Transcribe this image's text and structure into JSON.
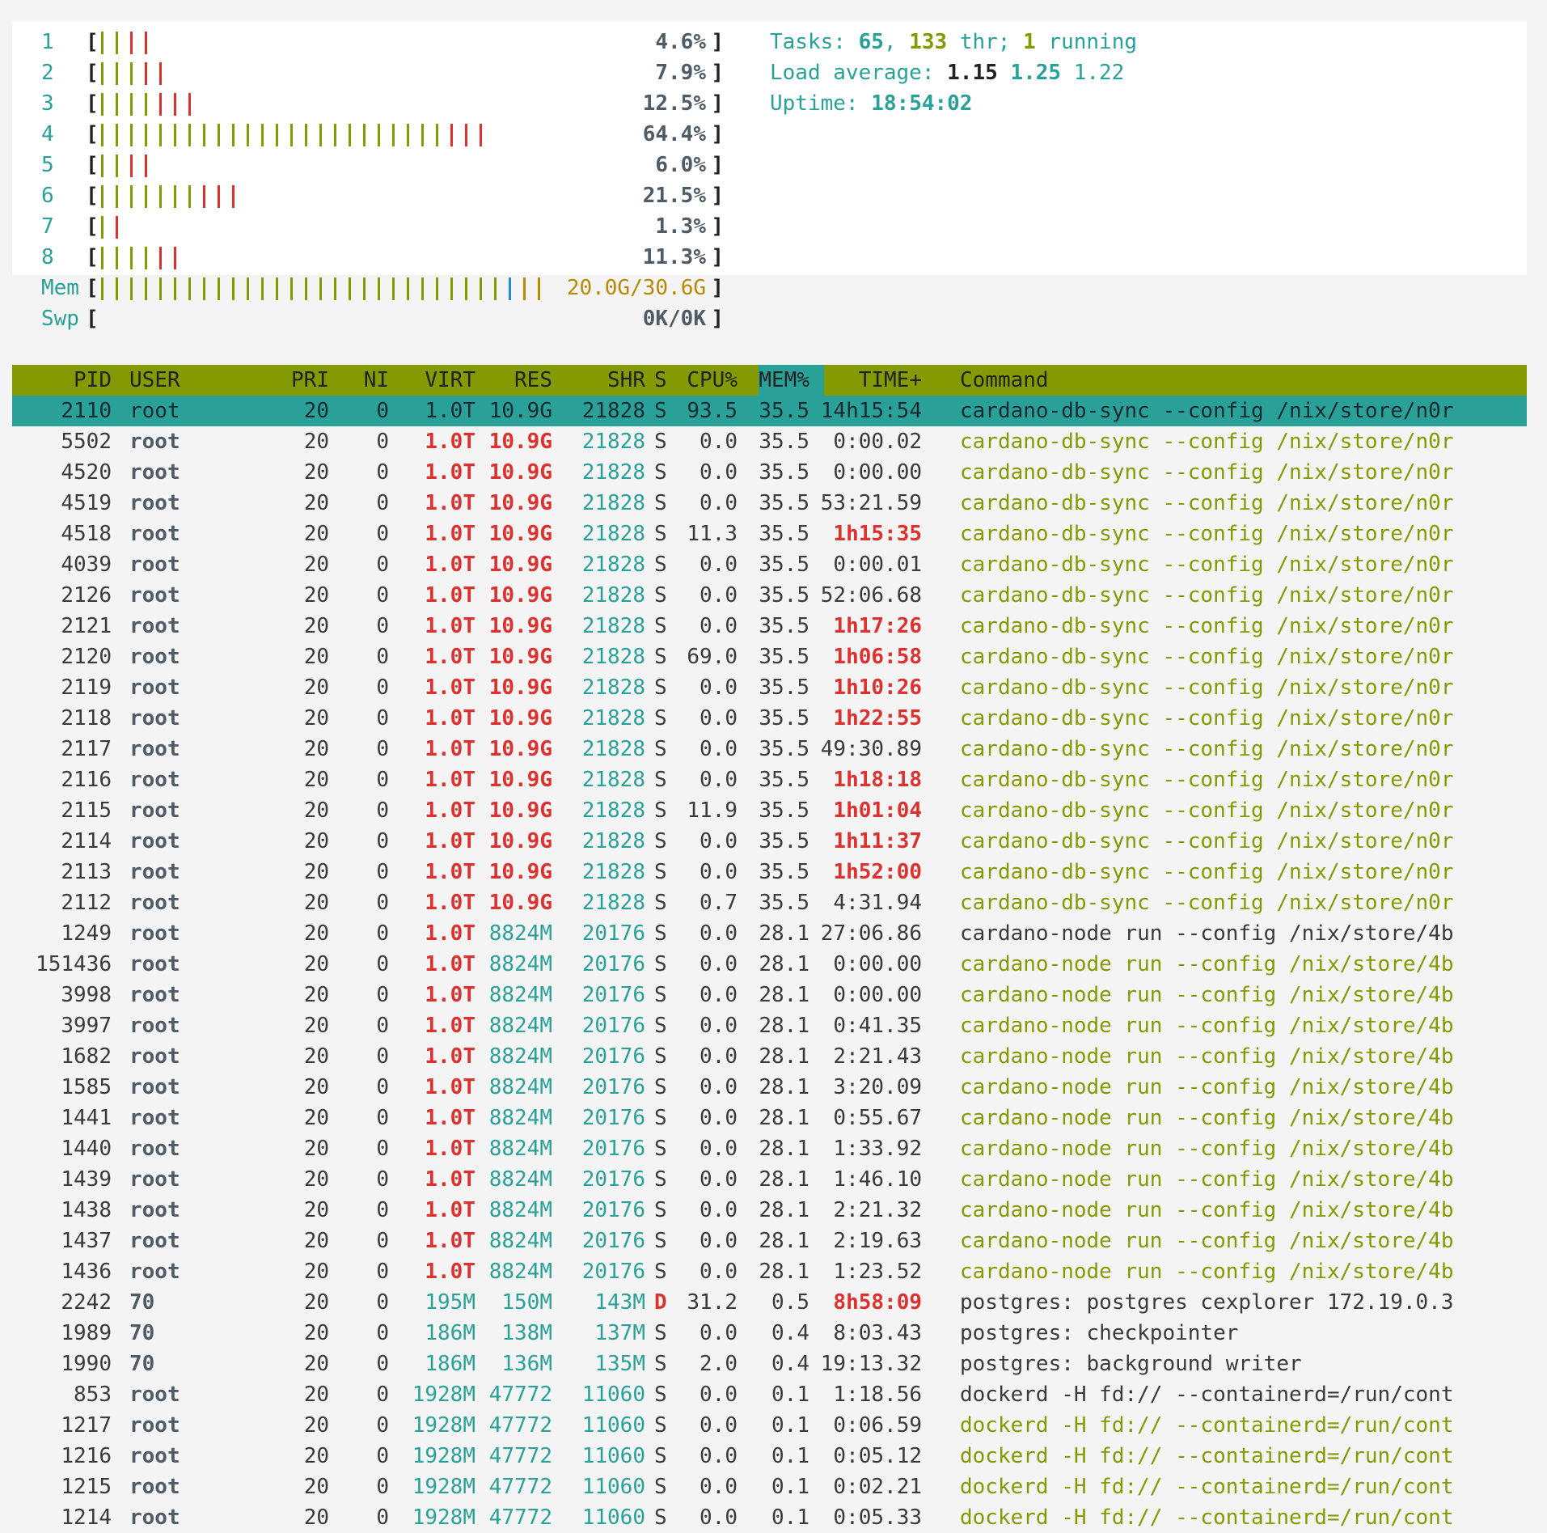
{
  "cpus": [
    {
      "num": "1",
      "percent": "4.6%",
      "green_bars": 2,
      "red_bars": 2
    },
    {
      "num": "2",
      "percent": "7.9%",
      "green_bars": 3,
      "red_bars": 2
    },
    {
      "num": "3",
      "percent": "12.5%",
      "green_bars": 4,
      "red_bars": 3
    },
    {
      "num": "4",
      "percent": "64.4%",
      "green_bars": 24,
      "red_bars": 3
    },
    {
      "num": "5",
      "percent": "6.0%",
      "green_bars": 2,
      "red_bars": 2
    },
    {
      "num": "6",
      "percent": "21.5%",
      "green_bars": 7,
      "red_bars": 3
    },
    {
      "num": "7",
      "percent": "1.3%",
      "green_bars": 1,
      "red_bars": 1
    },
    {
      "num": "8",
      "percent": "11.3%",
      "green_bars": 4,
      "red_bars": 2
    }
  ],
  "mem": {
    "label": "Mem",
    "value": "20.0G/30.6G",
    "green_bars": 28,
    "blue_bars": 1,
    "yellow_bars": 2
  },
  "swp": {
    "label": "Swp",
    "value": "0K/0K"
  },
  "summary": {
    "tasks_label": "Tasks:",
    "tasks": "65",
    "thr": "133",
    "thr_label": "thr;",
    "running": "1",
    "running_label": "running",
    "load_label": "Load average:",
    "load1": "1.15",
    "load5": "1.25",
    "load15": "1.22",
    "uptime_label": "Uptime:",
    "uptime": "18:54:02"
  },
  "header": {
    "pid": "PID",
    "user": "USER",
    "pri": "PRI",
    "ni": "NI",
    "virt": "VIRT",
    "res": "RES",
    "shr": "SHR",
    "s": "S",
    "cpu": "CPU%",
    "mem": "MEM%",
    "time": "TIME+",
    "command": "Command"
  },
  "processes": [
    {
      "pid": "2110",
      "user": "root",
      "pri": "20",
      "ni": "0",
      "virt": "1.0T",
      "res": "10.9G",
      "shr": "21828",
      "s": "S",
      "cpu": "93.5",
      "mem": "35.5",
      "time": "14h15:54",
      "cmd": "cardano-db-sync --config /nix/store/n0r",
      "selected": true
    },
    {
      "pid": "5502",
      "user": "root",
      "pri": "20",
      "ni": "0",
      "virt": "1.0T",
      "res": "10.9G",
      "shr": "21828",
      "s": "S",
      "cpu": "0.0",
      "mem": "35.5",
      "time": "0:00.02",
      "cmd": "cardano-db-sync --config /nix/store/n0r",
      "thread": true
    },
    {
      "pid": "4520",
      "user": "root",
      "pri": "20",
      "ni": "0",
      "virt": "1.0T",
      "res": "10.9G",
      "shr": "21828",
      "s": "S",
      "cpu": "0.0",
      "mem": "35.5",
      "time": "0:00.00",
      "cmd": "cardano-db-sync --config /nix/store/n0r",
      "thread": true
    },
    {
      "pid": "4519",
      "user": "root",
      "pri": "20",
      "ni": "0",
      "virt": "1.0T",
      "res": "10.9G",
      "shr": "21828",
      "s": "S",
      "cpu": "0.0",
      "mem": "35.5",
      "time": "53:21.59",
      "cmd": "cardano-db-sync --config /nix/store/n0r",
      "thread": true
    },
    {
      "pid": "4518",
      "user": "root",
      "pri": "20",
      "ni": "0",
      "virt": "1.0T",
      "res": "10.9G",
      "shr": "21828",
      "s": "S",
      "cpu": "11.3",
      "mem": "35.5",
      "time": "1h15:35",
      "cmd": "cardano-db-sync --config /nix/store/n0r",
      "thread": true
    },
    {
      "pid": "4039",
      "user": "root",
      "pri": "20",
      "ni": "0",
      "virt": "1.0T",
      "res": "10.9G",
      "shr": "21828",
      "s": "S",
      "cpu": "0.0",
      "mem": "35.5",
      "time": "0:00.01",
      "cmd": "cardano-db-sync --config /nix/store/n0r",
      "thread": true
    },
    {
      "pid": "2126",
      "user": "root",
      "pri": "20",
      "ni": "0",
      "virt": "1.0T",
      "res": "10.9G",
      "shr": "21828",
      "s": "S",
      "cpu": "0.0",
      "mem": "35.5",
      "time": "52:06.68",
      "cmd": "cardano-db-sync --config /nix/store/n0r",
      "thread": true
    },
    {
      "pid": "2121",
      "user": "root",
      "pri": "20",
      "ni": "0",
      "virt": "1.0T",
      "res": "10.9G",
      "shr": "21828",
      "s": "S",
      "cpu": "0.0",
      "mem": "35.5",
      "time": "1h17:26",
      "cmd": "cardano-db-sync --config /nix/store/n0r",
      "thread": true
    },
    {
      "pid": "2120",
      "user": "root",
      "pri": "20",
      "ni": "0",
      "virt": "1.0T",
      "res": "10.9G",
      "shr": "21828",
      "s": "S",
      "cpu": "69.0",
      "mem": "35.5",
      "time": "1h06:58",
      "cmd": "cardano-db-sync --config /nix/store/n0r",
      "thread": true
    },
    {
      "pid": "2119",
      "user": "root",
      "pri": "20",
      "ni": "0",
      "virt": "1.0T",
      "res": "10.9G",
      "shr": "21828",
      "s": "S",
      "cpu": "0.0",
      "mem": "35.5",
      "time": "1h10:26",
      "cmd": "cardano-db-sync --config /nix/store/n0r",
      "thread": true
    },
    {
      "pid": "2118",
      "user": "root",
      "pri": "20",
      "ni": "0",
      "virt": "1.0T",
      "res": "10.9G",
      "shr": "21828",
      "s": "S",
      "cpu": "0.0",
      "mem": "35.5",
      "time": "1h22:55",
      "cmd": "cardano-db-sync --config /nix/store/n0r",
      "thread": true
    },
    {
      "pid": "2117",
      "user": "root",
      "pri": "20",
      "ni": "0",
      "virt": "1.0T",
      "res": "10.9G",
      "shr": "21828",
      "s": "S",
      "cpu": "0.0",
      "mem": "35.5",
      "time": "49:30.89",
      "cmd": "cardano-db-sync --config /nix/store/n0r",
      "thread": true
    },
    {
      "pid": "2116",
      "user": "root",
      "pri": "20",
      "ni": "0",
      "virt": "1.0T",
      "res": "10.9G",
      "shr": "21828",
      "s": "S",
      "cpu": "0.0",
      "mem": "35.5",
      "time": "1h18:18",
      "cmd": "cardano-db-sync --config /nix/store/n0r",
      "thread": true
    },
    {
      "pid": "2115",
      "user": "root",
      "pri": "20",
      "ni": "0",
      "virt": "1.0T",
      "res": "10.9G",
      "shr": "21828",
      "s": "S",
      "cpu": "11.9",
      "mem": "35.5",
      "time": "1h01:04",
      "cmd": "cardano-db-sync --config /nix/store/n0r",
      "thread": true
    },
    {
      "pid": "2114",
      "user": "root",
      "pri": "20",
      "ni": "0",
      "virt": "1.0T",
      "res": "10.9G",
      "shr": "21828",
      "s": "S",
      "cpu": "0.0",
      "mem": "35.5",
      "time": "1h11:37",
      "cmd": "cardano-db-sync --config /nix/store/n0r",
      "thread": true
    },
    {
      "pid": "2113",
      "user": "root",
      "pri": "20",
      "ni": "0",
      "virt": "1.0T",
      "res": "10.9G",
      "shr": "21828",
      "s": "S",
      "cpu": "0.0",
      "mem": "35.5",
      "time": "1h52:00",
      "cmd": "cardano-db-sync --config /nix/store/n0r",
      "thread": true
    },
    {
      "pid": "2112",
      "user": "root",
      "pri": "20",
      "ni": "0",
      "virt": "1.0T",
      "res": "10.9G",
      "shr": "21828",
      "s": "S",
      "cpu": "0.7",
      "mem": "35.5",
      "time": "4:31.94",
      "cmd": "cardano-db-sync --config /nix/store/n0r",
      "thread": true
    },
    {
      "pid": "1249",
      "user": "root",
      "pri": "20",
      "ni": "0",
      "virt": "1.0T",
      "res": "8824M",
      "shr": "20176",
      "s": "S",
      "cpu": "0.0",
      "mem": "28.1",
      "time": "27:06.86",
      "cmd": "cardano-node run --config /nix/store/4b"
    },
    {
      "pid": "151436",
      "user": "root",
      "pri": "20",
      "ni": "0",
      "virt": "1.0T",
      "res": "8824M",
      "shr": "20176",
      "s": "S",
      "cpu": "0.0",
      "mem": "28.1",
      "time": "0:00.00",
      "cmd": "cardano-node run --config /nix/store/4b",
      "thread": true
    },
    {
      "pid": "3998",
      "user": "root",
      "pri": "20",
      "ni": "0",
      "virt": "1.0T",
      "res": "8824M",
      "shr": "20176",
      "s": "S",
      "cpu": "0.0",
      "mem": "28.1",
      "time": "0:00.00",
      "cmd": "cardano-node run --config /nix/store/4b",
      "thread": true
    },
    {
      "pid": "3997",
      "user": "root",
      "pri": "20",
      "ni": "0",
      "virt": "1.0T",
      "res": "8824M",
      "shr": "20176",
      "s": "S",
      "cpu": "0.0",
      "mem": "28.1",
      "time": "0:41.35",
      "cmd": "cardano-node run --config /nix/store/4b",
      "thread": true
    },
    {
      "pid": "1682",
      "user": "root",
      "pri": "20",
      "ni": "0",
      "virt": "1.0T",
      "res": "8824M",
      "shr": "20176",
      "s": "S",
      "cpu": "0.0",
      "mem": "28.1",
      "time": "2:21.43",
      "cmd": "cardano-node run --config /nix/store/4b",
      "thread": true
    },
    {
      "pid": "1585",
      "user": "root",
      "pri": "20",
      "ni": "0",
      "virt": "1.0T",
      "res": "8824M",
      "shr": "20176",
      "s": "S",
      "cpu": "0.0",
      "mem": "28.1",
      "time": "3:20.09",
      "cmd": "cardano-node run --config /nix/store/4b",
      "thread": true
    },
    {
      "pid": "1441",
      "user": "root",
      "pri": "20",
      "ni": "0",
      "virt": "1.0T",
      "res": "8824M",
      "shr": "20176",
      "s": "S",
      "cpu": "0.0",
      "mem": "28.1",
      "time": "0:55.67",
      "cmd": "cardano-node run --config /nix/store/4b",
      "thread": true
    },
    {
      "pid": "1440",
      "user": "root",
      "pri": "20",
      "ni": "0",
      "virt": "1.0T",
      "res": "8824M",
      "shr": "20176",
      "s": "S",
      "cpu": "0.0",
      "mem": "28.1",
      "time": "1:33.92",
      "cmd": "cardano-node run --config /nix/store/4b",
      "thread": true
    },
    {
      "pid": "1439",
      "user": "root",
      "pri": "20",
      "ni": "0",
      "virt": "1.0T",
      "res": "8824M",
      "shr": "20176",
      "s": "S",
      "cpu": "0.0",
      "mem": "28.1",
      "time": "1:46.10",
      "cmd": "cardano-node run --config /nix/store/4b",
      "thread": true
    },
    {
      "pid": "1438",
      "user": "root",
      "pri": "20",
      "ni": "0",
      "virt": "1.0T",
      "res": "8824M",
      "shr": "20176",
      "s": "S",
      "cpu": "0.0",
      "mem": "28.1",
      "time": "2:21.32",
      "cmd": "cardano-node run --config /nix/store/4b",
      "thread": true
    },
    {
      "pid": "1437",
      "user": "root",
      "pri": "20",
      "ni": "0",
      "virt": "1.0T",
      "res": "8824M",
      "shr": "20176",
      "s": "S",
      "cpu": "0.0",
      "mem": "28.1",
      "time": "2:19.63",
      "cmd": "cardano-node run --config /nix/store/4b",
      "thread": true
    },
    {
      "pid": "1436",
      "user": "root",
      "pri": "20",
      "ni": "0",
      "virt": "1.0T",
      "res": "8824M",
      "shr": "20176",
      "s": "S",
      "cpu": "0.0",
      "mem": "28.1",
      "time": "1:23.52",
      "cmd": "cardano-node run --config /nix/store/4b",
      "thread": true
    },
    {
      "pid": "2242",
      "user": "70",
      "pri": "20",
      "ni": "0",
      "virt": "195M",
      "res": "150M",
      "shr": "143M",
      "s": "D",
      "cpu": "31.2",
      "mem": "0.5",
      "time": "8h58:09",
      "cmd": "postgres: postgres cexplorer 172.19.0.3"
    },
    {
      "pid": "1989",
      "user": "70",
      "pri": "20",
      "ni": "0",
      "virt": "186M",
      "res": "138M",
      "shr": "137M",
      "s": "S",
      "cpu": "0.0",
      "mem": "0.4",
      "time": "8:03.43",
      "cmd": "postgres: checkpointer"
    },
    {
      "pid": "1990",
      "user": "70",
      "pri": "20",
      "ni": "0",
      "virt": "186M",
      "res": "136M",
      "shr": "135M",
      "s": "S",
      "cpu": "2.0",
      "mem": "0.4",
      "time": "19:13.32",
      "cmd": "postgres: background writer"
    },
    {
      "pid": "853",
      "user": "root",
      "pri": "20",
      "ni": "0",
      "virt": "1928M",
      "res": "47772",
      "shr": "11060",
      "s": "S",
      "cpu": "0.0",
      "mem": "0.1",
      "time": "1:18.56",
      "cmd": "dockerd -H fd:// --containerd=/run/cont"
    },
    {
      "pid": "1217",
      "user": "root",
      "pri": "20",
      "ni": "0",
      "virt": "1928M",
      "res": "47772",
      "shr": "11060",
      "s": "S",
      "cpu": "0.0",
      "mem": "0.1",
      "time": "0:06.59",
      "cmd": "dockerd -H fd:// --containerd=/run/cont",
      "thread": true
    },
    {
      "pid": "1216",
      "user": "root",
      "pri": "20",
      "ni": "0",
      "virt": "1928M",
      "res": "47772",
      "shr": "11060",
      "s": "S",
      "cpu": "0.0",
      "mem": "0.1",
      "time": "0:05.12",
      "cmd": "dockerd -H fd:// --containerd=/run/cont",
      "thread": true
    },
    {
      "pid": "1215",
      "user": "root",
      "pri": "20",
      "ni": "0",
      "virt": "1928M",
      "res": "47772",
      "shr": "11060",
      "s": "S",
      "cpu": "0.0",
      "mem": "0.1",
      "time": "0:02.21",
      "cmd": "dockerd -H fd:// --containerd=/run/cont",
      "thread": true
    },
    {
      "pid": "1214",
      "user": "root",
      "pri": "20",
      "ni": "0",
      "virt": "1928M",
      "res": "47772",
      "shr": "11060",
      "s": "S",
      "cpu": "0.0",
      "mem": "0.1",
      "time": "0:05.33",
      "cmd": "dockerd -H fd:// --containerd=/run/cont",
      "thread": true
    }
  ],
  "colors": {
    "green": "#859900",
    "red": "#dc322f",
    "teal": "#2aa198",
    "blue": "#268bd2",
    "yellow": "#b58900"
  }
}
